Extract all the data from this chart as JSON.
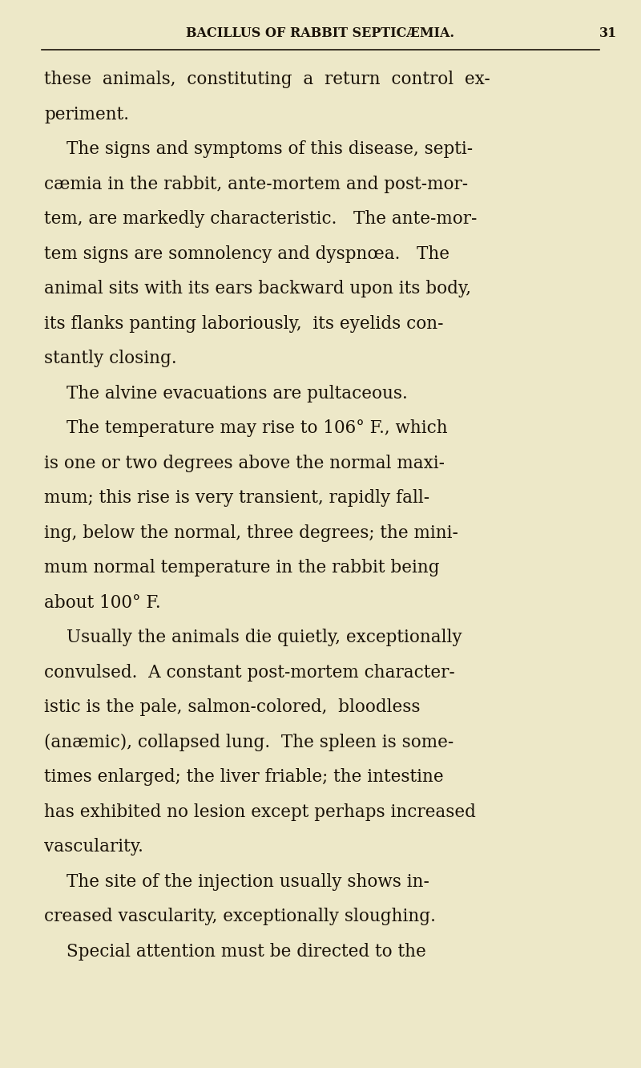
{
  "background_color": "#ede8c8",
  "page_width": 8.0,
  "page_height": 13.32,
  "dpi": 100,
  "header_text": "BACILLUS OF RABBIT SEPTICÆMIA.",
  "page_number": "31",
  "header_font_color": "#1a1208",
  "line_color": "#1a1208",
  "body_font_color": "#1a1208",
  "body_fontsize": 15.5,
  "header_fontsize": 11.5,
  "paragraphs": [
    {
      "indent": false,
      "lines": [
        "these  animals,  constituting  a  return  control  ex-",
        "periment."
      ]
    },
    {
      "indent": true,
      "lines": [
        "The signs and symptoms of this disease, septi-",
        "cæmia in the rabbit, ante-mortem and post-mor-",
        "tem, are markedly characteristic.   The ante-mor-",
        "tem signs are somnolency and dyspnœa.   The",
        "animal sits with its ears backward upon its body,",
        "its flanks panting laboriously,  its eyelids con-",
        "stantly closing."
      ]
    },
    {
      "indent": true,
      "lines": [
        "The alvine evacuations are pultaceous."
      ]
    },
    {
      "indent": true,
      "lines": [
        "The temperature may rise to 106° F., which",
        "is one or two degrees above the normal maxi-",
        "mum; this rise is very transient, rapidly fall-",
        "ing, below the normal, three degrees; the mini-",
        "mum normal temperature in the rabbit being",
        "about 100° F."
      ]
    },
    {
      "indent": true,
      "lines": [
        "Usually the animals die quietly, exceptionally",
        "convulsed.  A constant post-mortem character-",
        "istic is the pale, salmon-colored,  bloodless",
        "(anæmic), collapsed lung.  The spleen is some-",
        "times enlarged; the liver friable; the intestine",
        "has exhibited no lesion except perhaps increased",
        "vascularity."
      ]
    },
    {
      "indent": true,
      "lines": [
        "The site of the injection usually shows in-",
        "creased vascularity, exceptionally sloughing."
      ]
    },
    {
      "indent": true,
      "lines": [
        "Special attention must be directed to the"
      ]
    }
  ]
}
